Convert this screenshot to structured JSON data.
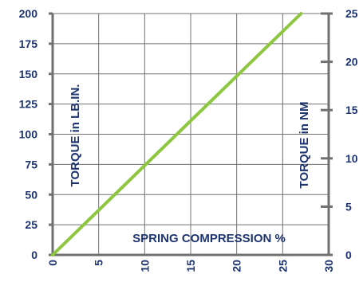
{
  "chart_data": {
    "type": "line",
    "title": "",
    "xlabel": "SPRING COMPRESSION %",
    "ylabel_left": "TORQUE in LB.IN.",
    "ylabel_right": "TORQUE in NM",
    "xlim": [
      0,
      30
    ],
    "ylim_left": [
      0,
      200
    ],
    "ylim_right": [
      0,
      25
    ],
    "x_ticks": [
      "0",
      "5",
      "10",
      "15",
      "20",
      "25",
      "30"
    ],
    "y_ticks_left": [
      "0",
      "25",
      "50",
      "75",
      "100",
      "125",
      "150",
      "175",
      "200"
    ],
    "y_ticks_right": [
      "0",
      "5",
      "10",
      "15",
      "20",
      "25"
    ],
    "grid": true,
    "series": [
      {
        "name": "",
        "color": "#8dc63f",
        "x": [
          0,
          27
        ],
        "y": [
          0,
          200
        ]
      }
    ],
    "colors": {
      "axis": "#707070",
      "grid": "#707070",
      "text": "#1e3470",
      "line": "#8dc63f"
    }
  }
}
